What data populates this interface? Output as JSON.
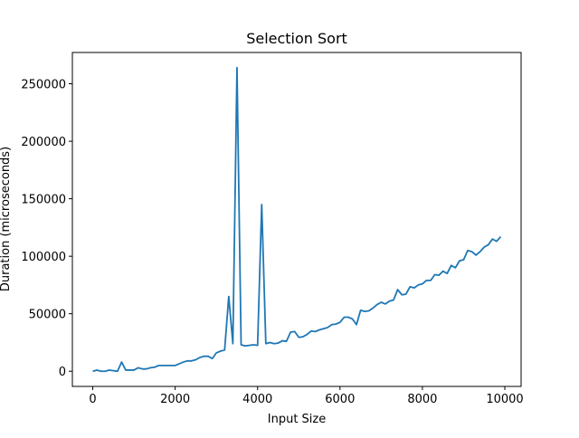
{
  "chart_data": {
    "type": "line",
    "title": "Selection Sort",
    "x_label": "Input Size",
    "y_label": "Duration (microseconds)",
    "x": [
      0,
      100,
      200,
      300,
      400,
      500,
      600,
      700,
      800,
      900,
      1000,
      1100,
      1200,
      1300,
      1400,
      1500,
      1600,
      1700,
      1800,
      1900,
      2000,
      2100,
      2200,
      2300,
      2400,
      2500,
      2600,
      2700,
      2800,
      2900,
      3000,
      3100,
      3200,
      3300,
      3400,
      3500,
      3600,
      3700,
      3800,
      3900,
      4000,
      4100,
      4200,
      4300,
      4400,
      4500,
      4600,
      4700,
      4800,
      4900,
      5000,
      5100,
      5200,
      5300,
      5400,
      5500,
      5600,
      5700,
      5800,
      5900,
      6000,
      6100,
      6200,
      6300,
      6400,
      6500,
      6600,
      6700,
      6800,
      6900,
      7000,
      7100,
      7200,
      7300,
      7400,
      7500,
      7600,
      7700,
      7800,
      7900,
      8000,
      8100,
      8200,
      8300,
      8400,
      8500,
      8600,
      8700,
      8800,
      8900,
      9000,
      9100,
      9200,
      9300,
      9400,
      9500,
      9600,
      9700,
      9800,
      9900
    ],
    "series": [
      {
        "color": "#1f77b4",
        "values": [
          0,
          1000,
          0,
          0,
          1000,
          500,
          0,
          8000,
          1000,
          1000,
          1000,
          3000,
          2000,
          2000,
          3000,
          3500,
          5000,
          5000,
          5000,
          5000,
          5000,
          6500,
          8000,
          9000,
          9000,
          10000,
          12000,
          13000,
          13000,
          11000,
          16000,
          17500,
          18500,
          65000,
          24000,
          264000,
          23000,
          22000,
          22500,
          23000,
          22500,
          145000,
          24000,
          25000,
          24000,
          24500,
          26500,
          26000,
          34000,
          34500,
          29500,
          30000,
          32000,
          35000,
          34500,
          36000,
          37000,
          38000,
          40500,
          41000,
          42500,
          47000,
          47000,
          45500,
          40500,
          53000,
          52000,
          52500,
          55000,
          58000,
          60000,
          58500,
          61000,
          62000,
          71000,
          66500,
          67000,
          73500,
          72500,
          75000,
          76000,
          79000,
          79000,
          84000,
          83500,
          87000,
          85000,
          92000,
          90000,
          96000,
          97000,
          105000,
          104000,
          101000,
          104000,
          108000,
          110000,
          115000,
          113000,
          117000
        ]
      }
    ],
    "xlim": [
      -495,
      10395
    ],
    "ylim": [
      -13200,
      277200
    ],
    "xticks": [
      0,
      2000,
      4000,
      6000,
      8000,
      10000
    ],
    "yticks": [
      0,
      50000,
      100000,
      150000,
      200000,
      250000
    ]
  }
}
